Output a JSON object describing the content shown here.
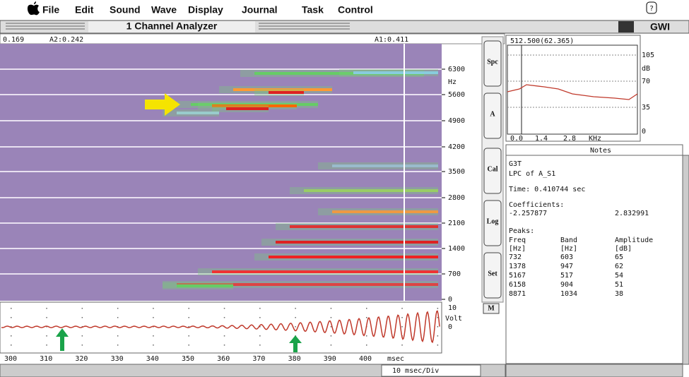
{
  "menu_bar": {
    "items": [
      "File",
      "Edit",
      "Sound",
      "Wave",
      "Display",
      "Journal",
      "Task",
      "Control"
    ],
    "help": "?",
    "user": "GWI"
  },
  "window": {
    "title": "1 Channel Analyzer"
  },
  "spectrogram": {
    "cursor_left": "0.169",
    "cursor_a2": "A2:0.242",
    "cursor_a1": "A1:0.411",
    "y_ticks": [
      "6300",
      "5600",
      "4900",
      "4200",
      "3500",
      "2800",
      "2100",
      "1400",
      "700",
      "0"
    ],
    "y_unit": "Hz",
    "buttons": [
      "Spc",
      "A",
      "Cal",
      "Log",
      "Set"
    ]
  },
  "waveform": {
    "y_ticks": [
      "10",
      "0"
    ],
    "y_unit": "Volt",
    "button": "M",
    "x_ticks": [
      "300",
      "310",
      "320",
      "330",
      "340",
      "350",
      "360",
      "370",
      "380",
      "390",
      "400"
    ],
    "x_unit": "msec",
    "scale": "10 msec/Div"
  },
  "spectrum": {
    "header": "512.500(62.365)",
    "y_ticks": [
      "105",
      "70",
      "35",
      "0"
    ],
    "y_unit": "dB",
    "x_ticks": [
      "0.0",
      "1.4",
      "2.8"
    ],
    "x_unit": "KHz"
  },
  "notes": {
    "title": "Notes",
    "lines": [
      "G3T",
      "LPC of A_S1",
      "Time: 0.410744 sec",
      "Coefficients:"
    ],
    "coefficients": [
      "-2.257877",
      "2.832991"
    ],
    "peaks_label": "Peaks:",
    "table": {
      "headers": [
        "Freq",
        "Band",
        "Amplitude"
      ],
      "units": [
        "[Hz]",
        "[Hz]",
        "[dB]"
      ],
      "rows": [
        [
          "732",
          "603",
          "65"
        ],
        [
          "1378",
          "947",
          "62"
        ],
        [
          "5167",
          "517",
          "54"
        ],
        [
          "6158",
          "904",
          "51"
        ],
        [
          "8871",
          "1034",
          "38"
        ]
      ]
    }
  }
}
